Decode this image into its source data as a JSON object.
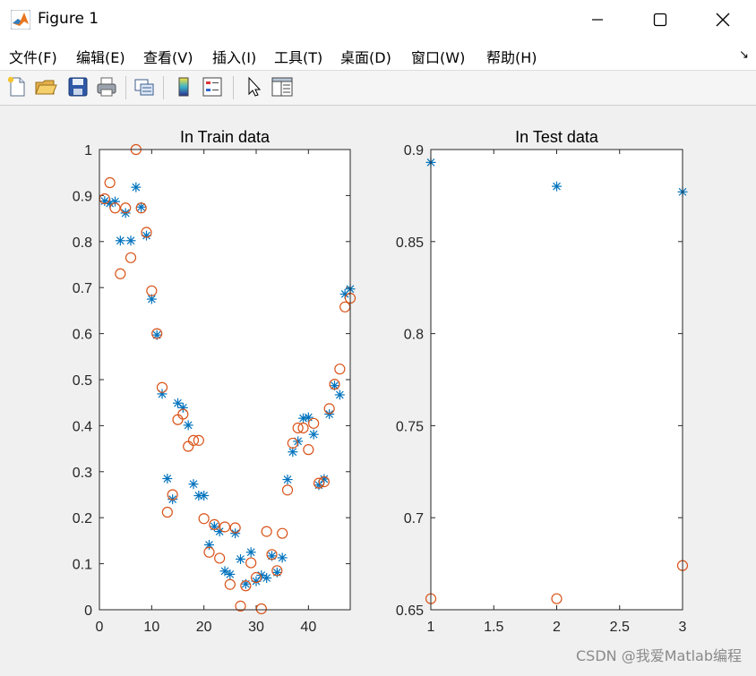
{
  "window": {
    "title": "Figure 1",
    "controls": {
      "minimize": "minimize",
      "maximize": "maximize",
      "close": "close"
    }
  },
  "menu": {
    "items": [
      "文件(F)",
      "编辑(E)",
      "查看(V)",
      "插入(I)",
      "工具(T)",
      "桌面(D)",
      "窗口(W)",
      "帮助(H)"
    ]
  },
  "toolbar": {
    "icons": [
      "new-figure-icon",
      "open-file-icon",
      "save-icon",
      "print-icon",
      "link-figure-icon",
      "colorbar-icon",
      "legend-icon",
      "pointer-icon",
      "property-editor-icon"
    ]
  },
  "watermark": "CSDN @我爱Matlab编程",
  "colors": {
    "series1": "#0072BD",
    "series2": "#D95319"
  },
  "chart_data": [
    {
      "type": "scatter",
      "title": "In Train data",
      "xlabel": "",
      "ylabel": "",
      "xlim": [
        0,
        48
      ],
      "ylim": [
        0,
        1
      ],
      "xticks": [
        0,
        10,
        20,
        30,
        40
      ],
      "yticks": [
        0,
        0.1,
        0.2,
        0.3,
        0.4,
        0.5,
        0.6,
        0.7,
        0.8,
        0.9,
        1
      ],
      "ytick_labels": [
        "0",
        "0.1",
        "0.2",
        "0.3",
        "0.4",
        "0.5",
        "0.6",
        "0.7",
        "0.8",
        "0.9",
        "1"
      ],
      "grid": false,
      "series": [
        {
          "marker": "asterisk",
          "color": "#0072BD",
          "x": [
            1,
            2,
            3,
            4,
            5,
            6,
            7,
            8,
            9,
            10,
            11,
            12,
            13,
            14,
            15,
            16,
            17,
            18,
            19,
            20,
            21,
            22,
            23,
            24,
            25,
            26,
            27,
            28,
            29,
            30,
            31,
            32,
            33,
            34,
            35,
            36,
            37,
            38,
            39,
            40,
            41,
            42,
            43,
            44,
            45,
            46,
            47,
            48
          ],
          "y": [
            0.888,
            0.883,
            0.887,
            0.802,
            0.862,
            0.802,
            0.918,
            0.875,
            0.813,
            0.675,
            0.597,
            0.469,
            0.285,
            0.24,
            0.449,
            0.439,
            0.401,
            0.273,
            0.248,
            0.248,
            0.141,
            0.181,
            0.17,
            0.084,
            0.077,
            0.166,
            0.11,
            0.056,
            0.125,
            0.062,
            0.075,
            0.069,
            0.117,
            0.081,
            0.113,
            0.283,
            0.343,
            0.366,
            0.416,
            0.418,
            0.381,
            0.271,
            0.284,
            0.425,
            0.487,
            0.467,
            0.686,
            0.697
          ]
        },
        {
          "marker": "circle",
          "color": "#D95319",
          "x": [
            1,
            2,
            3,
            4,
            5,
            6,
            7,
            8,
            9,
            10,
            11,
            12,
            13,
            14,
            15,
            16,
            17,
            18,
            19,
            20,
            21,
            22,
            23,
            24,
            25,
            26,
            27,
            28,
            29,
            30,
            31,
            32,
            33,
            34,
            35,
            36,
            37,
            38,
            39,
            40,
            41,
            42,
            43,
            44,
            45,
            46,
            47,
            48
          ],
          "y": [
            0.893,
            0.928,
            0.873,
            0.73,
            0.873,
            0.765,
            1.0,
            0.873,
            0.82,
            0.693,
            0.6,
            0.483,
            0.212,
            0.25,
            0.413,
            0.425,
            0.355,
            0.368,
            0.368,
            0.198,
            0.125,
            0.185,
            0.112,
            0.18,
            0.055,
            0.178,
            0.008,
            0.052,
            0.102,
            0.07,
            0.002,
            0.17,
            0.12,
            0.085,
            0.166,
            0.26,
            0.362,
            0.395,
            0.395,
            0.348,
            0.405,
            0.275,
            0.278,
            0.437,
            0.49,
            0.523,
            0.658,
            0.677
          ]
        }
      ]
    },
    {
      "type": "scatter",
      "title": "In Test data",
      "xlabel": "",
      "ylabel": "",
      "xlim": [
        1,
        3
      ],
      "ylim": [
        0.65,
        0.9
      ],
      "xticks": [
        1,
        1.5,
        2,
        2.5,
        3
      ],
      "yticks": [
        0.65,
        0.7,
        0.75,
        0.8,
        0.85,
        0.9
      ],
      "ytick_labels": [
        "0.65",
        "0.7",
        "0.75",
        "0.8",
        "0.85",
        "0.9"
      ],
      "grid": false,
      "series": [
        {
          "marker": "asterisk",
          "color": "#0072BD",
          "x": [
            1,
            2,
            3
          ],
          "y": [
            0.893,
            0.88,
            0.877
          ]
        },
        {
          "marker": "circle",
          "color": "#D95319",
          "x": [
            1,
            2,
            3
          ],
          "y": [
            0.656,
            0.656,
            0.674
          ]
        }
      ]
    }
  ]
}
